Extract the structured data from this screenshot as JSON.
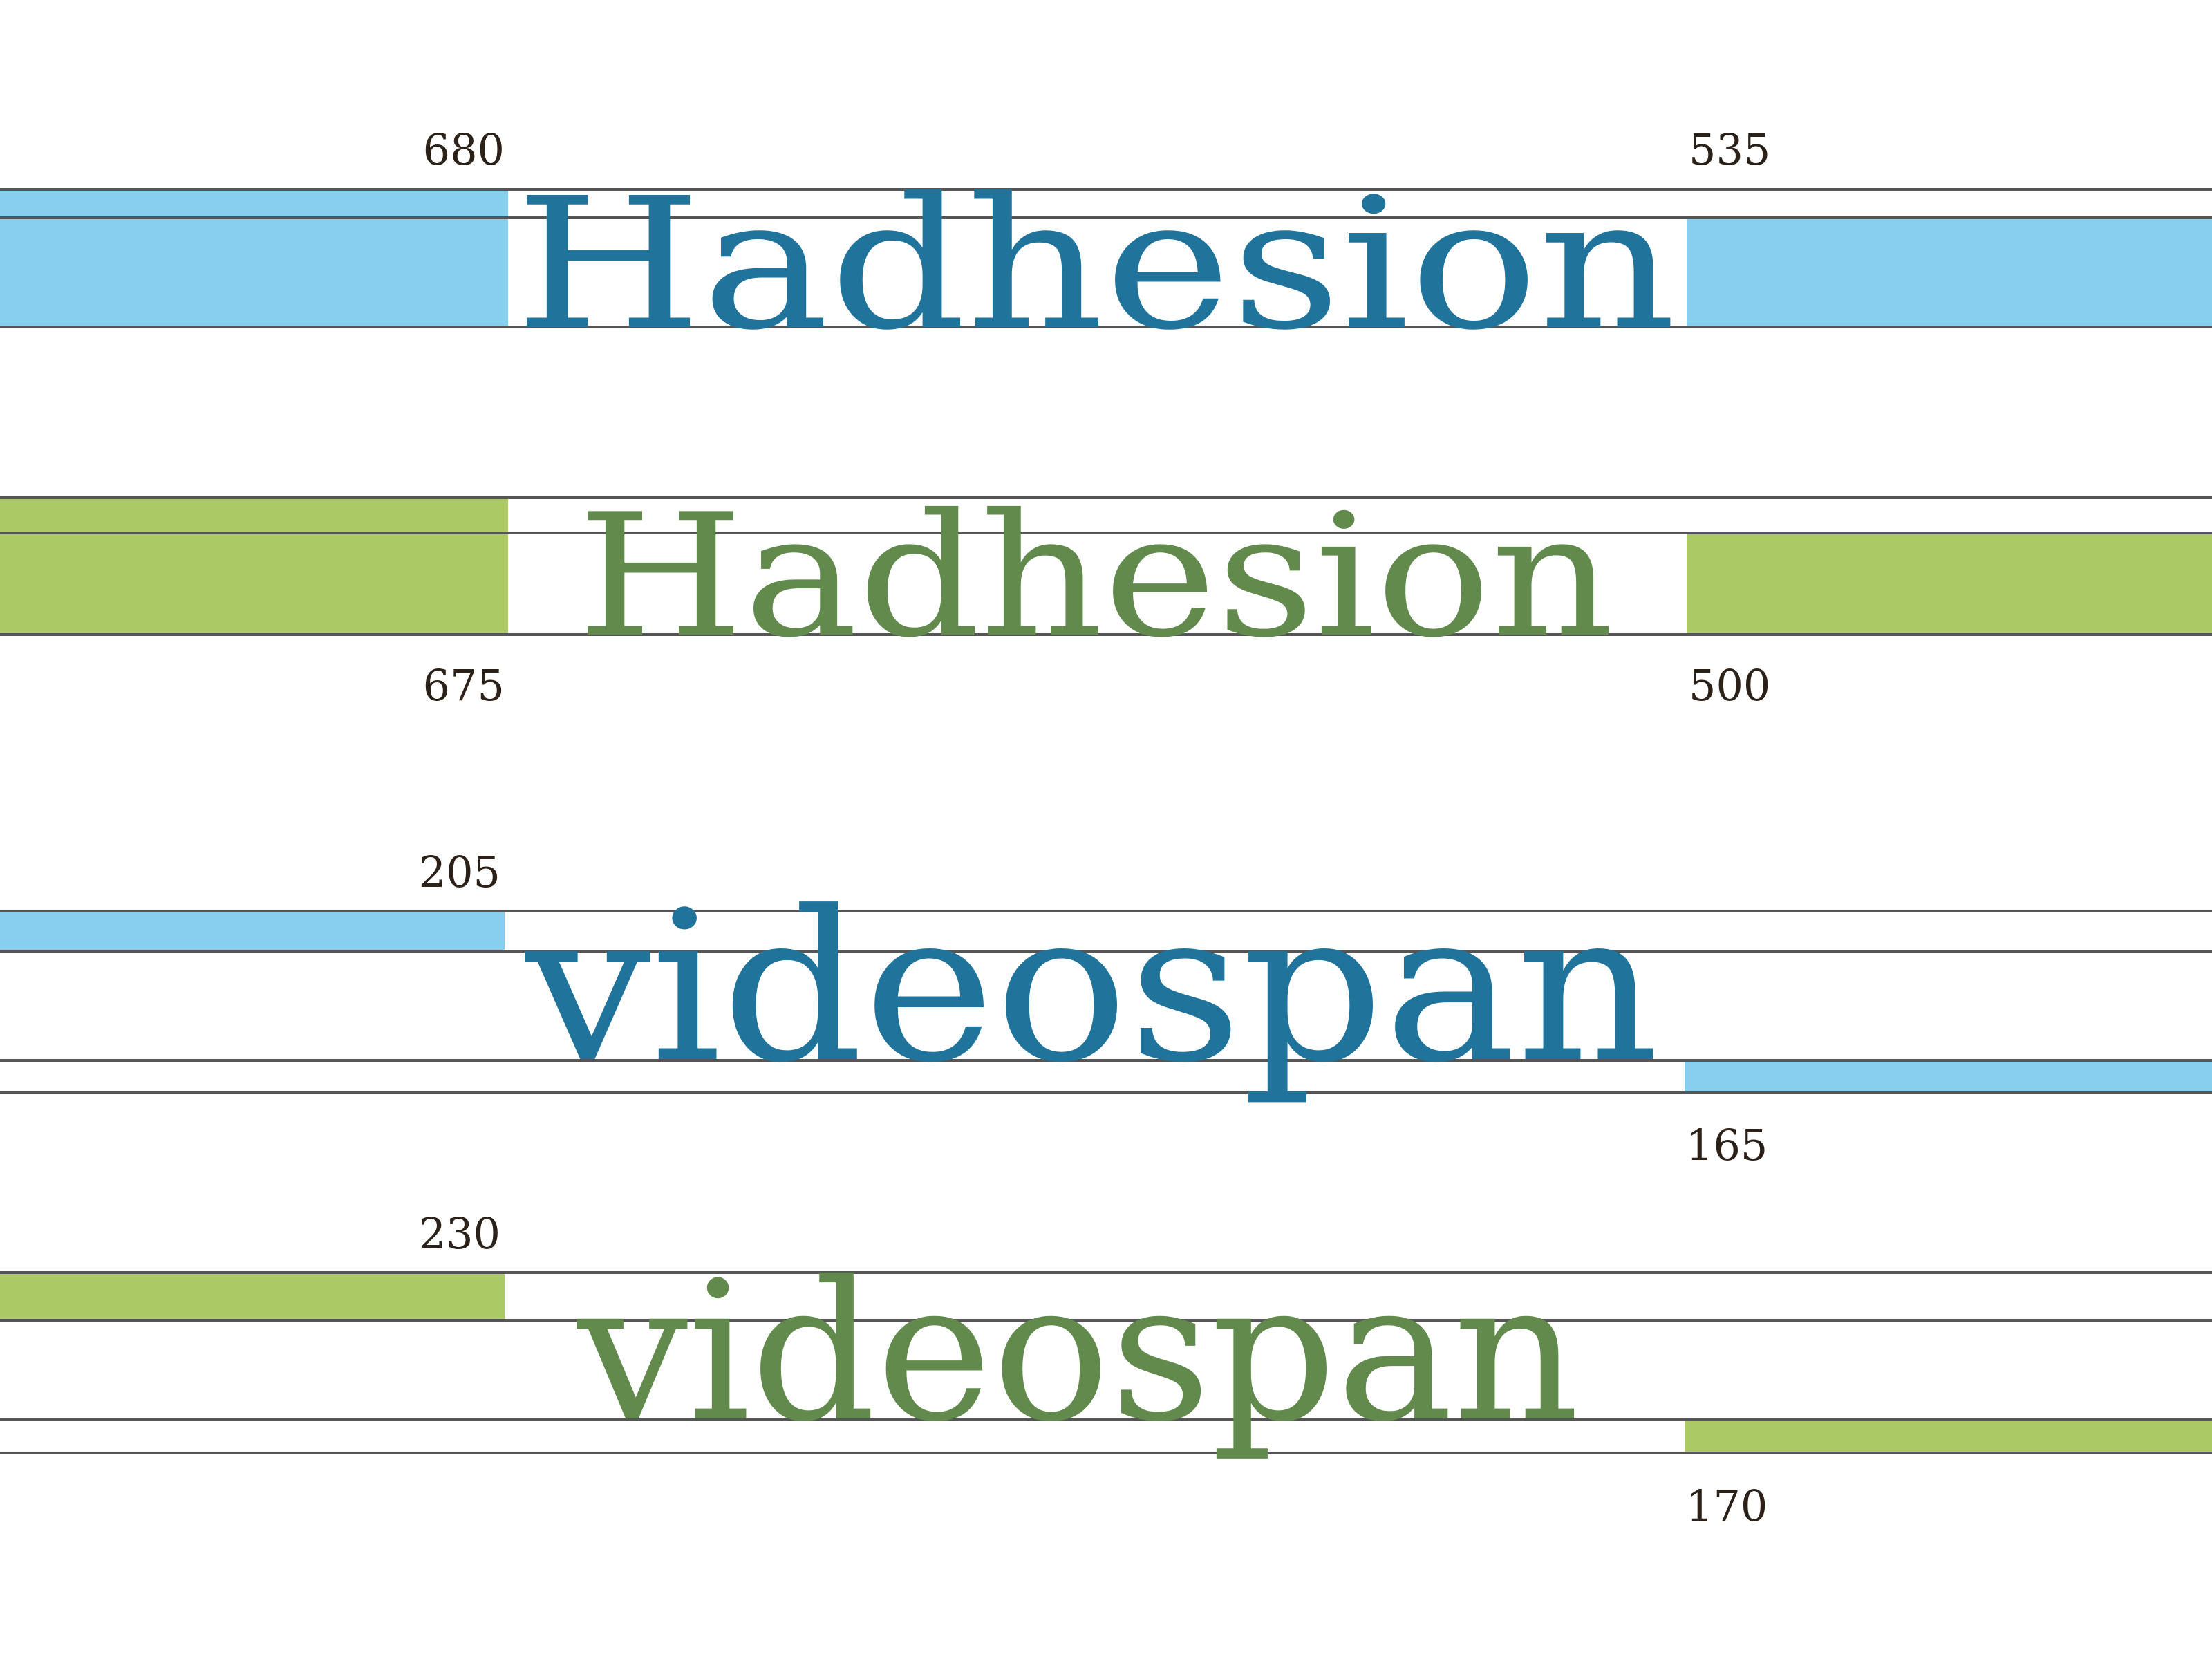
{
  "colors": {
    "blue_text": "#20749c",
    "blue_bar": "#88cfef",
    "green_text": "#618a4c",
    "green_bar": "#abca66",
    "guide_line": "#555555",
    "number_text": "#2b2118"
  },
  "specimens": [
    {
      "word": "Hadhesion",
      "style": "blue",
      "left_value": "680",
      "right_value": "535"
    },
    {
      "word": "Hadhesion",
      "style": "green",
      "left_value": "675",
      "right_value": "500"
    },
    {
      "word": "videospan",
      "style": "blue",
      "left_value": "205",
      "right_value": "165"
    },
    {
      "word": "videospan",
      "style": "green",
      "left_value": "230",
      "right_value": "170"
    }
  ]
}
